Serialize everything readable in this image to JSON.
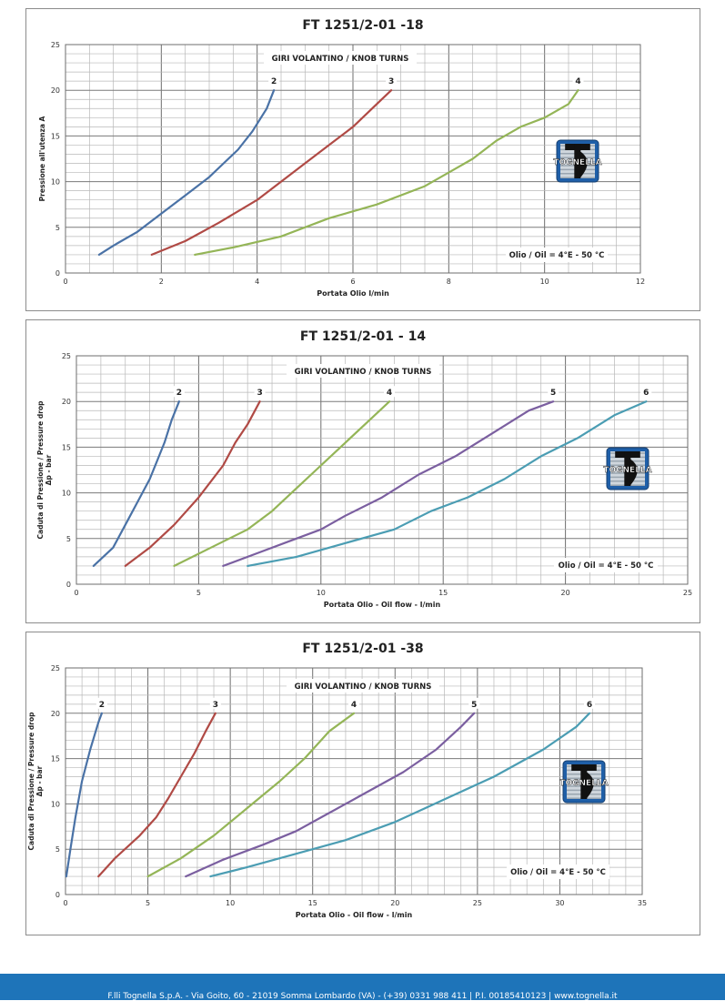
{
  "chart_data": [
    {
      "type": "line",
      "title": "FT 1251/2-01 -18",
      "annotation": "GIRI VOLANTINO / KNOB TURNS",
      "oil_note": "Olio / Oil = 4°E - 50 °C",
      "logo_text": "TOGNELLA",
      "xlabel": "Portata Olio l/min",
      "ylabel": [
        "Pressione all'utenza A"
      ],
      "xlim": [
        0,
        12
      ],
      "ylim": [
        0,
        25
      ],
      "xticks": [
        0,
        2,
        4,
        6,
        8,
        10,
        12
      ],
      "yticks": [
        0,
        5,
        10,
        15,
        20,
        25
      ],
      "xminor": 0.5,
      "yminor": 1,
      "grid": true,
      "series": [
        {
          "name": "2",
          "color": "#4a72a6",
          "x": [
            0.7,
            1.0,
            1.5,
            2.0,
            2.5,
            3.0,
            3.3,
            3.6,
            3.9,
            4.2,
            4.35
          ],
          "y": [
            2,
            3,
            4.5,
            6.5,
            8.5,
            10.5,
            12,
            13.5,
            15.5,
            18,
            20
          ]
        },
        {
          "name": "3",
          "color": "#b04a45",
          "x": [
            1.8,
            2.5,
            3.2,
            4.0,
            4.5,
            5.0,
            5.5,
            6.0,
            6.3,
            6.6,
            6.8
          ],
          "y": [
            2,
            3.5,
            5.5,
            8,
            10,
            12,
            14,
            16,
            17.5,
            19,
            20
          ]
        },
        {
          "name": "4",
          "color": "#94b557",
          "x": [
            2.7,
            3.5,
            4.5,
            5.5,
            6.5,
            7.5,
            8.5,
            9.0,
            9.5,
            10.0,
            10.5,
            10.7
          ],
          "y": [
            2,
            2.8,
            4.0,
            6.0,
            7.5,
            9.5,
            12.5,
            14.5,
            16,
            17,
            18.5,
            20
          ]
        }
      ]
    },
    {
      "type": "line",
      "title": "FT 1251/2-01 - 14",
      "annotation": "GIRI VOLANTINO / KNOB TURNS",
      "oil_note": "Olio / Oil = 4°E - 50 °C",
      "logo_text": "TOGNELLA",
      "xlabel": "Portata Olio - Oil flow -  l/min",
      "ylabel": [
        "Caduta di Pressione / Pressure drop",
        "Δp - bar"
      ],
      "xlim": [
        0,
        25
      ],
      "ylim": [
        0,
        25
      ],
      "xticks": [
        0,
        5,
        10,
        15,
        20,
        25
      ],
      "yticks": [
        0,
        5,
        10,
        15,
        20,
        25
      ],
      "xminor": 1,
      "yminor": 1,
      "grid": true,
      "series": [
        {
          "name": "2",
          "color": "#4a72a6",
          "x": [
            0.7,
            1.5,
            2.0,
            2.5,
            3.0,
            3.3,
            3.6,
            3.9,
            4.2
          ],
          "y": [
            2,
            4,
            6.5,
            9,
            11.5,
            13.5,
            15.5,
            18,
            20
          ]
        },
        {
          "name": "3",
          "color": "#b04a45",
          "x": [
            2.0,
            3.0,
            4.0,
            5.0,
            6.0,
            6.5,
            7.0,
            7.5
          ],
          "y": [
            2,
            4,
            6.5,
            9.5,
            13,
            15.5,
            17.5,
            20
          ]
        },
        {
          "name": "4",
          "color": "#94b557",
          "x": [
            4.0,
            5.5,
            7.0,
            8.0,
            9.0,
            10.0,
            11.0,
            12.0,
            12.8
          ],
          "y": [
            2,
            4,
            6,
            8,
            10.5,
            13,
            15.5,
            18,
            20
          ]
        },
        {
          "name": "5",
          "color": "#7b5fa0",
          "x": [
            6.0,
            7.5,
            9.0,
            10.0,
            11.0,
            12.5,
            14.0,
            15.5,
            17.0,
            18.5,
            19.5
          ],
          "y": [
            2,
            3.5,
            5,
            6,
            7.5,
            9.5,
            12,
            14,
            16.5,
            19,
            20
          ]
        },
        {
          "name": "6",
          "color": "#4b9db3",
          "x": [
            7.0,
            9.0,
            11.0,
            13.0,
            14.5,
            16.0,
            17.5,
            19.0,
            20.5,
            22.0,
            23.3
          ],
          "y": [
            2,
            3,
            4.5,
            6,
            8,
            9.5,
            11.5,
            14,
            16,
            18.5,
            20
          ]
        }
      ]
    },
    {
      "type": "line",
      "title": "FT 1251/2-01 -38",
      "annotation": "GIRI VOLANTINO / KNOB TURNS",
      "oil_note": "Olio / Oil = 4°E - 50 °C",
      "logo_text": "TOGNELLA",
      "xlabel": "Portata Olio - Oil flow -  l/min",
      "ylabel": [
        "Caduta di Pressione / Pressure drop",
        "Δp - bar"
      ],
      "xlim": [
        0,
        35
      ],
      "ylim": [
        0,
        25
      ],
      "xticks": [
        0,
        5,
        10,
        15,
        20,
        25,
        30,
        35
      ],
      "yticks": [
        0,
        5,
        10,
        15,
        20,
        25
      ],
      "xminor": 1,
      "yminor": 1,
      "grid": true,
      "series": [
        {
          "name": "2",
          "color": "#4a72a6",
          "x": [
            0.05,
            0.3,
            0.6,
            1.0,
            1.5,
            2.0,
            2.2
          ],
          "y": [
            2,
            5,
            8.5,
            12.5,
            16,
            19,
            20
          ]
        },
        {
          "name": "3",
          "color": "#b04a45",
          "x": [
            2.0,
            3.0,
            4.5,
            5.5,
            6.2,
            7.0,
            7.8,
            8.5,
            9.1
          ],
          "y": [
            2,
            4,
            6.5,
            8.5,
            10.5,
            13,
            15.5,
            18,
            20
          ]
        },
        {
          "name": "4",
          "color": "#94b557",
          "x": [
            5.0,
            7.0,
            9.0,
            11.0,
            13.0,
            14.5,
            16.0,
            17.5
          ],
          "y": [
            2,
            4,
            6.5,
            9.5,
            12.5,
            15,
            18,
            20
          ]
        },
        {
          "name": "5",
          "color": "#7b5fa0",
          "x": [
            7.3,
            9.5,
            12.0,
            14.0,
            16.0,
            18.0,
            20.5,
            22.5,
            24.0,
            24.8
          ],
          "y": [
            2,
            3.8,
            5.5,
            7,
            9,
            11,
            13.5,
            16,
            18.5,
            20
          ]
        },
        {
          "name": "6",
          "color": "#4b9db3",
          "x": [
            8.8,
            11.0,
            14.0,
            17.0,
            20.0,
            23.0,
            26.0,
            29.0,
            31.0,
            31.8
          ],
          "y": [
            2,
            3,
            4.5,
            6,
            8,
            10.5,
            13,
            16,
            18.5,
            20
          ]
        }
      ]
    }
  ],
  "footer": {
    "text": "F.lli Tognella S.p.A. - Via Goito, 60 - 21019 Somma Lombardo (VA) - (+39) 0331 988 411 | P.I. 00185410123 | www.tognella.it"
  }
}
